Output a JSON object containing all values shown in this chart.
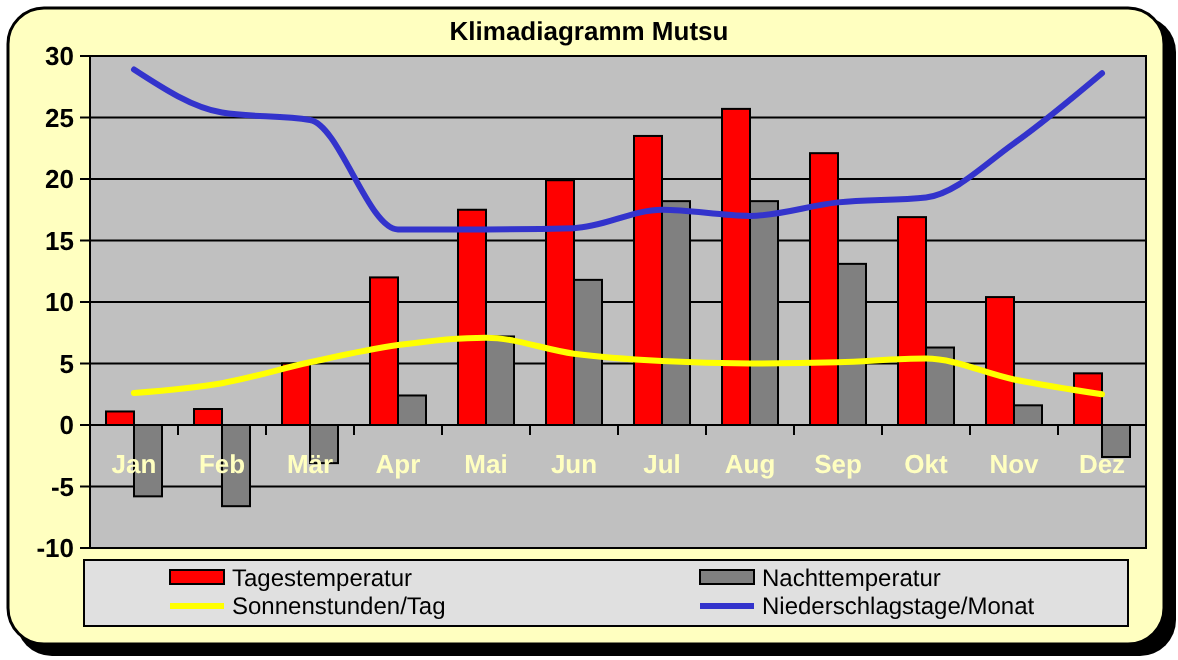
{
  "chart_data": {
    "type": "bar",
    "title": "Klimadiagramm Mutsu",
    "categories": [
      "Jan",
      "Feb",
      "Mär",
      "Apr",
      "Mai",
      "Jun",
      "Jul",
      "Aug",
      "Sep",
      "Okt",
      "Nov",
      "Dez"
    ],
    "series": [
      {
        "name": "Tagestemperatur",
        "color": "#ff0000",
        "values": [
          1.1,
          1.3,
          5.0,
          12.0,
          17.5,
          19.9,
          23.5,
          25.7,
          22.1,
          16.9,
          10.4,
          4.2
        ]
      },
      {
        "name": "Nachttemperatur",
        "color": "#808080",
        "values": [
          -5.8,
          -6.6,
          -3.1,
          2.4,
          7.2,
          11.8,
          18.2,
          18.2,
          13.1,
          6.3,
          1.6,
          -2.6
        ]
      },
      {
        "name": "Sonnenstunden/Tag",
        "type": "line",
        "color": "#ffff00",
        "values": [
          2.6,
          3.4,
          5.1,
          6.5,
          7.1,
          5.8,
          5.2,
          5.0,
          5.1,
          5.4,
          3.7,
          2.5
        ]
      },
      {
        "name": "Niederschlagstage/Monat",
        "type": "line",
        "color": "#3333cc",
        "values": [
          28.9,
          25.4,
          24.8,
          15.9,
          15.9,
          16.0,
          17.5,
          17.0,
          18.1,
          18.5,
          22.9,
          28.6
        ]
      }
    ],
    "ylim": [
      -10,
      30
    ],
    "yticks": [
      -10,
      -5,
      0,
      5,
      10,
      15,
      20,
      25,
      30
    ],
    "grid": "y",
    "legend": "bottom"
  }
}
